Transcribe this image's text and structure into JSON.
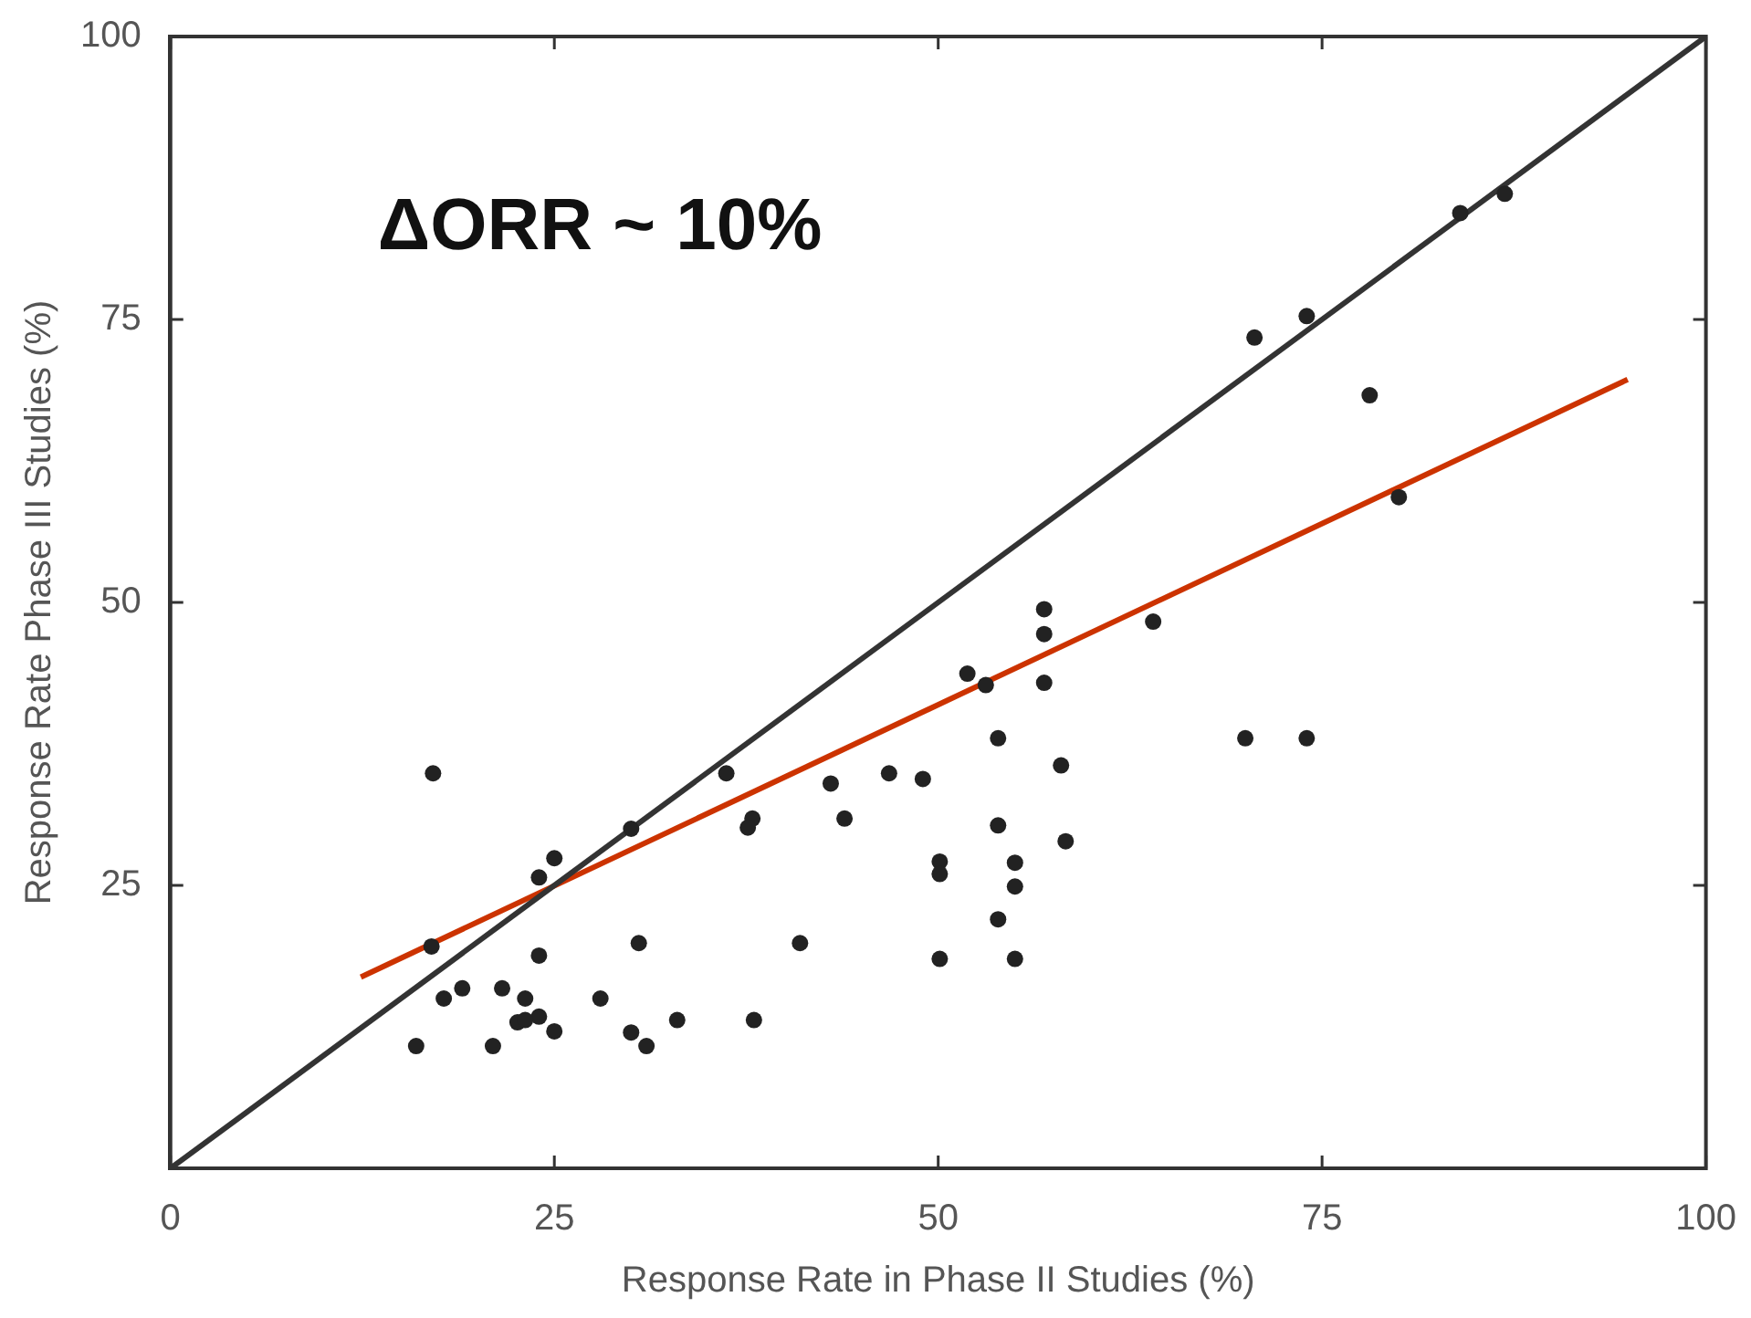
{
  "chart_data": {
    "type": "scatter",
    "xlabel": "Response Rate in Phase II Studies (%)",
    "ylabel": "Response Rate Phase III Studies (%)",
    "annotations": [
      "ΔORR ~ 10%"
    ],
    "xlim": [
      0,
      100
    ],
    "xticks": [
      0,
      25,
      50,
      75,
      100
    ],
    "ylim": [
      0,
      100
    ],
    "yticks": [
      25,
      50,
      75,
      100
    ],
    "series": [
      {
        "type": "scatter",
        "marker": "circle",
        "color": "#222222",
        "x": [
          17.1,
          43.0,
          37.9,
          37.6,
          43.9,
          30.0,
          25.0,
          24.0,
          17.0,
          30.5,
          41.0,
          24.0,
          19.0,
          21.6,
          17.8,
          23.1,
          28.0,
          24.0,
          22.6,
          23.1,
          25.0,
          30.0,
          33.0,
          38.0,
          16.0,
          21.0,
          31.0,
          36.2,
          56.9,
          56.9,
          64.0,
          51.9,
          53.1,
          56.9,
          53.9,
          58.0,
          46.8,
          49.0,
          53.9,
          58.3,
          50.1,
          50.1,
          55.0,
          55.0,
          53.9,
          50.1,
          55.0,
          86.9,
          84.0,
          74.0,
          70.6,
          78.1,
          80.0,
          70.0,
          74.0
        ],
        "values": [
          34.9,
          34.0,
          30.9,
          30.1,
          30.9,
          30.0,
          27.4,
          25.7,
          19.6,
          19.9,
          19.9,
          18.8,
          15.9,
          15.9,
          15.0,
          15.0,
          15.0,
          13.4,
          12.9,
          13.1,
          12.1,
          12.0,
          13.1,
          13.1,
          10.8,
          10.8,
          10.8,
          34.9,
          49.4,
          47.2,
          48.3,
          43.7,
          42.7,
          42.9,
          38.0,
          35.6,
          34.9,
          34.4,
          30.3,
          28.9,
          27.1,
          26.0,
          27.0,
          24.9,
          22.0,
          18.5,
          18.5,
          86.1,
          84.4,
          75.3,
          73.4,
          68.3,
          59.3,
          38.0,
          38.0
        ]
      },
      {
        "type": "line",
        "color": "#333333",
        "x": [
          0,
          100
        ],
        "values": [
          0,
          100
        ]
      },
      {
        "type": "line",
        "color": "#cc3300",
        "x": [
          12.4,
          94.9
        ],
        "values": [
          16.9,
          69.7
        ]
      }
    ]
  }
}
